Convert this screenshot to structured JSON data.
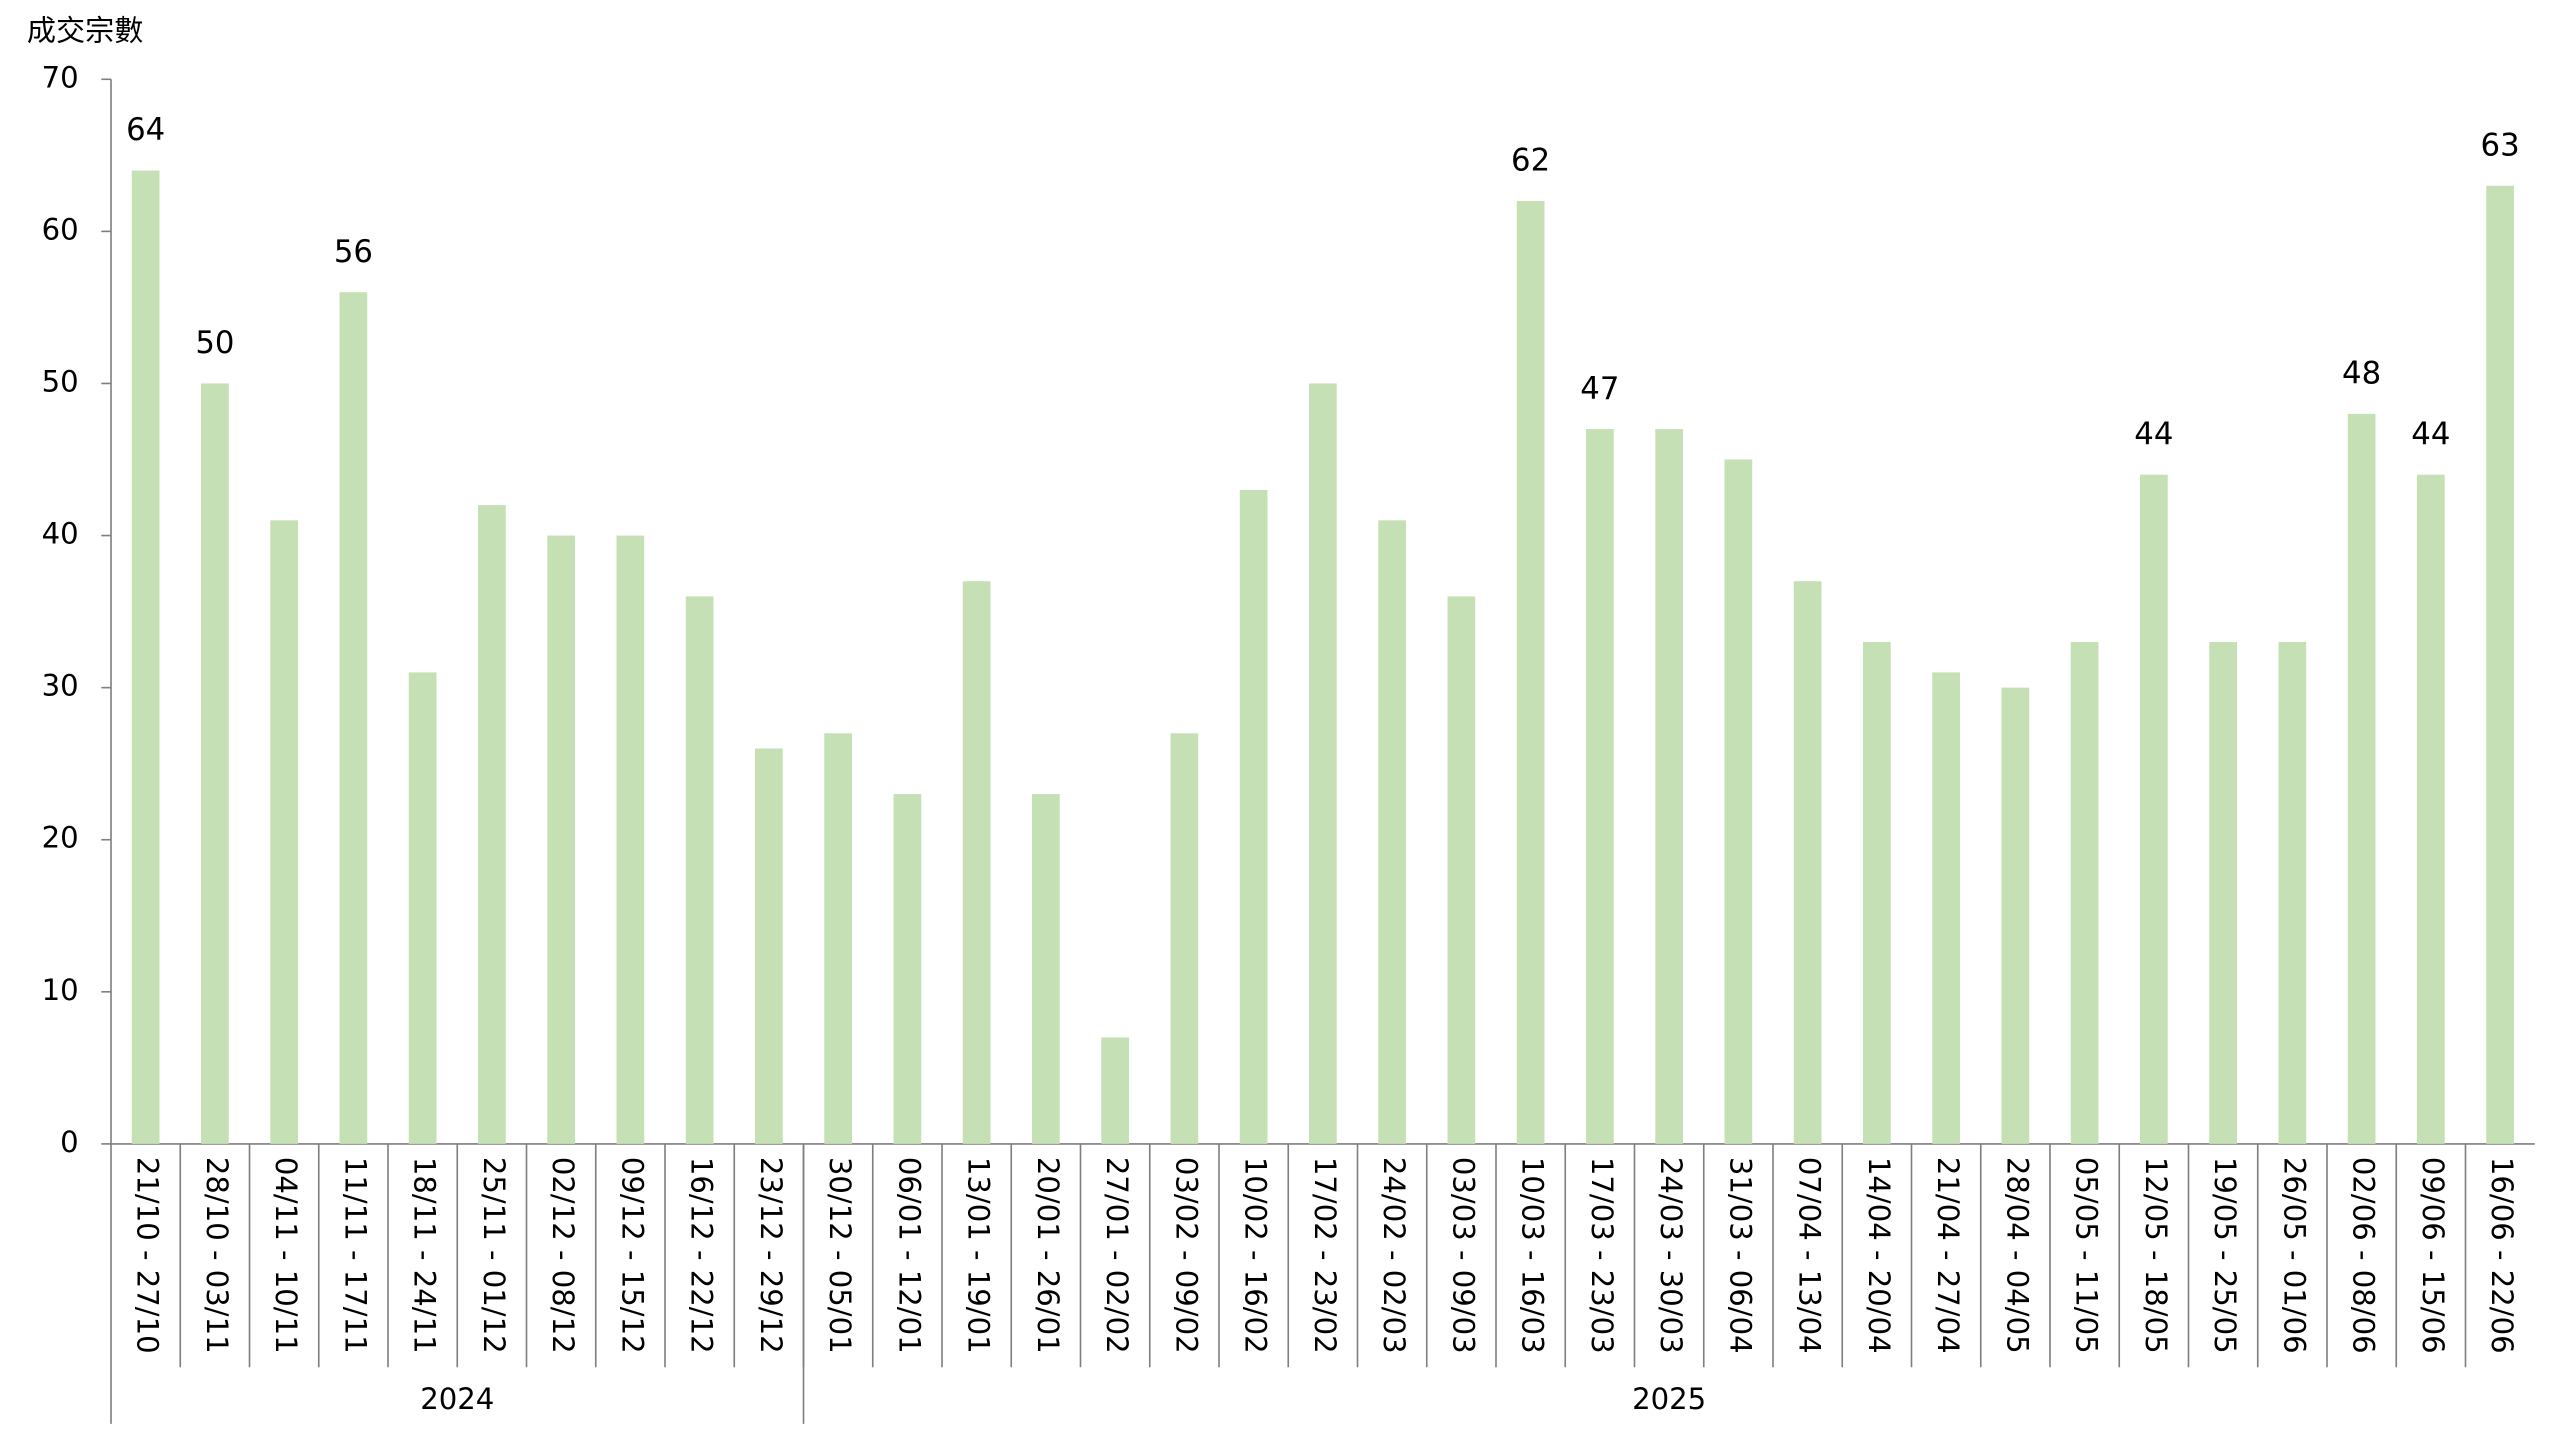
{
  "chart_data": {
    "type": "bar",
    "y_axis_title": "成交宗數",
    "categories": [
      "21/10 - 27/10",
      "28/10 - 03/11",
      "04/11 - 10/11",
      "11/11 - 17/11",
      "18/11 - 24/11",
      "25/11 - 01/12",
      "02/12 - 08/12",
      "09/12 - 15/12",
      "16/12 - 22/12",
      "23/12 - 29/12",
      "30/12 - 05/01",
      "06/01 - 12/01",
      "13/01 - 19/01",
      "20/01 - 26/01",
      "27/01 - 02/02",
      "03/02 - 09/02",
      "10/02 - 16/02",
      "17/02 - 23/02",
      "24/02 - 02/03",
      "03/03 - 09/03",
      "10/03 - 16/03",
      "17/03 - 23/03",
      "24/03 - 30/03",
      "31/03 - 06/04",
      "07/04 - 13/04",
      "14/04 - 20/04",
      "21/04 - 27/04",
      "28/04 - 04/05",
      "05/05 - 11/05",
      "12/05 - 18/05",
      "19/05 - 25/05",
      "26/05 - 01/06",
      "02/06 - 08/06",
      "09/06 - 15/06",
      "16/06 - 22/06"
    ],
    "values": [
      64,
      50,
      41,
      56,
      31,
      42,
      40,
      40,
      36,
      26,
      27,
      23,
      37,
      23,
      7,
      27,
      43,
      50,
      41,
      36,
      62,
      47,
      47,
      45,
      37,
      33,
      31,
      30,
      33,
      44,
      33,
      33,
      48,
      44,
      63
    ],
    "value_labels": [
      "64",
      "50",
      null,
      "56",
      null,
      null,
      null,
      null,
      null,
      null,
      null,
      null,
      null,
      null,
      null,
      null,
      null,
      null,
      null,
      null,
      "62",
      "47",
      null,
      null,
      null,
      null,
      null,
      null,
      null,
      "44",
      null,
      null,
      "48",
      "44",
      "63"
    ],
    "groups": [
      {
        "label": "2024",
        "span": 10
      },
      {
        "label": "2025",
        "span": 25
      }
    ],
    "color": "#c5e0b4",
    "ylim": [
      0,
      70
    ],
    "yticks": [
      0,
      10,
      20,
      30,
      40,
      50,
      60,
      70
    ],
    "grid": false
  }
}
